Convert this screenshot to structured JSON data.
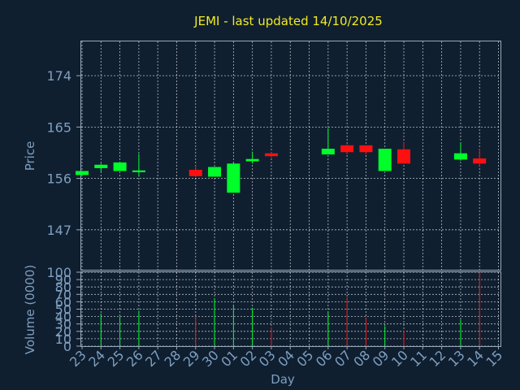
{
  "chart_data": {
    "type": "candlestick",
    "title": "JEMI - last updated 14/10/2025",
    "xlabel": "Day",
    "price_panel": {
      "ylabel": "Price",
      "yticks": [
        "147",
        "156",
        "165",
        "174"
      ],
      "ylim": [
        140,
        180
      ]
    },
    "volume_panel": {
      "ylabel": "Volume (0000)",
      "yticks": [
        "0",
        "10",
        "20",
        "30",
        "40",
        "50",
        "60",
        "70",
        "80",
        "90",
        "100"
      ],
      "ylim": [
        0,
        100
      ]
    },
    "day_labels": [
      "23",
      "24",
      "25",
      "26",
      "27",
      "28",
      "29",
      "30",
      "01",
      "02",
      "03",
      "04",
      "05",
      "06",
      "07",
      "08",
      "09",
      "10",
      "11",
      "12",
      "13",
      "14",
      "15"
    ],
    "candles": [
      {
        "day": "23",
        "open": 156.6,
        "high": 157.3,
        "low": 156.6,
        "close": 157.3,
        "volume": 0
      },
      {
        "day": "24",
        "open": 157.8,
        "high": 158.6,
        "low": 157.1,
        "close": 158.4,
        "volume": 44
      },
      {
        "day": "25",
        "open": 157.3,
        "high": 158.9,
        "low": 157.3,
        "close": 158.8,
        "volume": 40
      },
      {
        "day": "26",
        "open": 157.1,
        "high": 160.3,
        "low": 156.3,
        "close": 157.4,
        "volume": 48
      },
      {
        "day": "29",
        "open": 157.5,
        "high": 158.2,
        "low": 156.2,
        "close": 156.4,
        "volume": 40
      },
      {
        "day": "30",
        "open": 156.3,
        "high": 158.0,
        "low": 156.3,
        "close": 158.0,
        "volume": 65
      },
      {
        "day": "01",
        "open": 153.5,
        "high": 158.8,
        "low": 153.5,
        "close": 158.6,
        "volume": 56
      },
      {
        "day": "02",
        "open": 159.0,
        "high": 160.7,
        "low": 158.6,
        "close": 159.4,
        "volume": 52
      },
      {
        "day": "03",
        "open": 160.4,
        "high": 160.6,
        "low": 159.6,
        "close": 159.9,
        "volume": 25
      },
      {
        "day": "06",
        "open": 160.2,
        "high": 164.8,
        "low": 160.2,
        "close": 161.2,
        "volume": 46
      },
      {
        "day": "07",
        "open": 161.8,
        "high": 162.0,
        "low": 160.2,
        "close": 160.6,
        "volume": 66
      },
      {
        "day": "08",
        "open": 161.8,
        "high": 161.8,
        "low": 160.2,
        "close": 160.6,
        "volume": 38
      },
      {
        "day": "09",
        "open": 157.3,
        "high": 161.2,
        "low": 157.3,
        "close": 161.2,
        "volume": 27
      },
      {
        "day": "10",
        "open": 161.1,
        "high": 162.3,
        "low": 158.6,
        "close": 158.6,
        "volume": 21
      },
      {
        "day": "13",
        "open": 159.3,
        "high": 162.3,
        "low": 159.1,
        "close": 160.4,
        "volume": 36
      },
      {
        "day": "14",
        "open": 159.5,
        "high": 161.2,
        "low": 158.0,
        "close": 158.6,
        "volume": 100
      }
    ],
    "colors": {
      "background": "#0f1f30",
      "up": "#00ff2a",
      "down": "#ff1010",
      "title": "#f2ea22",
      "axis_text": "#7f9fbf",
      "frame": "#9aa9b8",
      "grid": "#ffffff"
    },
    "grid": true
  }
}
